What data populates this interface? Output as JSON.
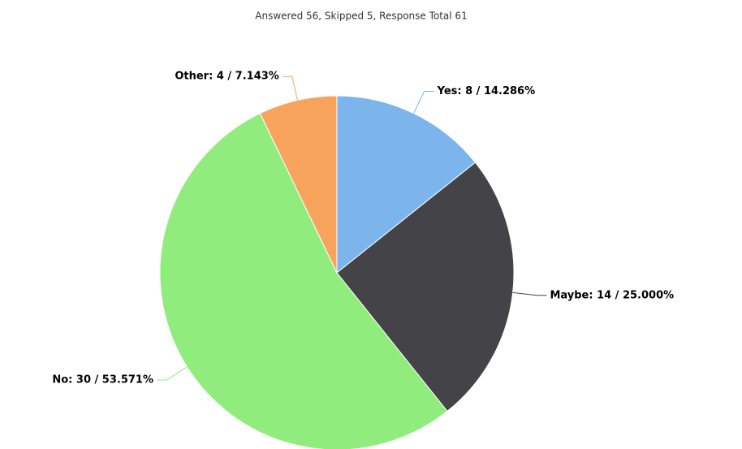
{
  "chart_data": {
    "type": "pie",
    "title": "Answered 56, Skipped 5, Response Total 61",
    "values": [
      8,
      14,
      30,
      4
    ],
    "value_labels": [
      "Yes: 8 / 14.286%",
      "Maybe: 14 / 25.000%",
      "No: 30 / 53.571%",
      "Other: 4 / 7.143%"
    ],
    "colors": [
      "#7cb5ec",
      "#434348",
      "#90ed7d",
      "#f7a35c"
    ]
  }
}
